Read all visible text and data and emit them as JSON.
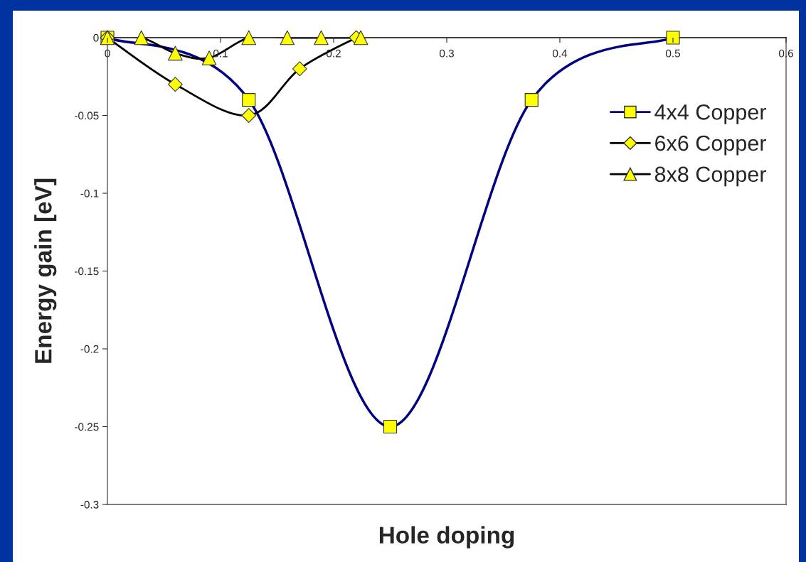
{
  "chart_data": {
    "type": "line",
    "xlabel": "Hole doping",
    "ylabel": "Energy gain [eV]",
    "xlim": [
      0,
      0.6
    ],
    "ylim": [
      -0.3,
      0
    ],
    "xticks": [
      0,
      0.1,
      0.2,
      0.3,
      0.4,
      0.5,
      0.6
    ],
    "yticks": [
      0,
      -0.05,
      -0.1,
      -0.15,
      -0.2,
      -0.25,
      -0.3
    ],
    "grid": false,
    "legend": "top right",
    "line_style": "solid",
    "series": [
      {
        "name": "4x4 Copper",
        "color": "#000080",
        "marker": "square",
        "colors": [
          "#ffff00",
          "#ffff00",
          "#ffff00",
          "#ffff00",
          "#ffff00"
        ],
        "x": [
          0,
          0.125,
          0.25,
          0.375,
          0.5
        ],
        "values": [
          0,
          -0.04,
          -0.25,
          -0.04,
          0
        ]
      },
      {
        "name": "6x6 Copper",
        "color": "#000000",
        "marker": "diamond",
        "colors": [
          "#ffff00",
          "#ffff00",
          "#ffff00",
          "#ffff00",
          "#ffff00"
        ],
        "x": [
          0,
          0.06,
          0.125,
          0.17,
          0.22
        ],
        "values": [
          0,
          -0.03,
          -0.05,
          -0.02,
          0
        ]
      },
      {
        "name": "8x8 Copper",
        "color": "#000000",
        "marker": "triangle",
        "colors": [
          "#ffff00",
          "#ffff00",
          "#ffff00",
          "#ffff00",
          "#ffff00",
          "#ffff00",
          "#ffff00",
          "#ffff00"
        ],
        "x": [
          0,
          0.03,
          0.06,
          0.09,
          0.125,
          0.159,
          0.189,
          0.224
        ],
        "values": [
          0,
          0,
          -0.01,
          -0.013,
          0,
          0,
          0,
          0
        ]
      }
    ]
  }
}
